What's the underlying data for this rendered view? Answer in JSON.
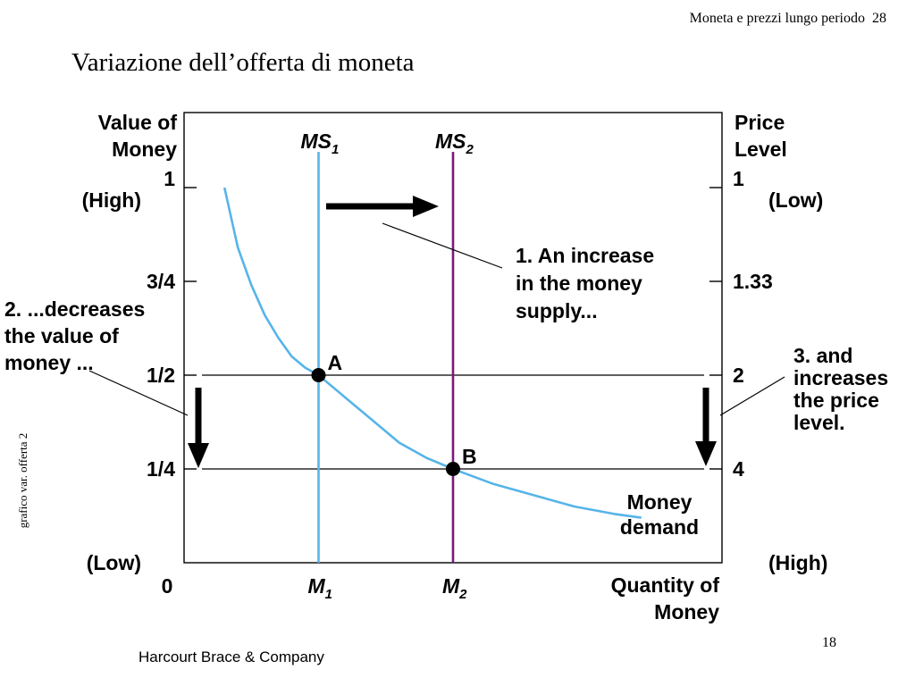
{
  "header": {
    "running_title": "Moneta e prezzi lungo periodo",
    "running_page": "28"
  },
  "slide": {
    "title": "Variazione dell’offerta di moneta",
    "side_label": "grafico var. offerta 2",
    "footer_left": "Harcourt Brace & Company",
    "footer_page": "18"
  },
  "chart_data": {
    "type": "line",
    "title": "Variazione dell’offerta di moneta",
    "left_axis": {
      "label_lines": [
        "Value of",
        "Money"
      ],
      "ticks": [
        {
          "label": "1",
          "value": 1
        },
        {
          "label": "3/4",
          "value": 0.75
        },
        {
          "label": "1/2",
          "value": 0.5
        },
        {
          "label": "1/4",
          "value": 0.25
        }
      ],
      "origin_label": "0",
      "high_label": "(High)",
      "low_label": "(Low)",
      "ylim": [
        0,
        1.2
      ]
    },
    "right_axis": {
      "label_lines": [
        "Price",
        "Level"
      ],
      "ticks": [
        {
          "label": "1",
          "value": 1
        },
        {
          "label": "1.33",
          "value": 1.33
        },
        {
          "label": "2",
          "value": 2
        },
        {
          "label": "4",
          "value": 4
        }
      ],
      "high_label": "(High)",
      "low_label": "(Low)"
    },
    "x_axis": {
      "label_lines": [
        "Quantity of",
        "Money"
      ],
      "ticks": [
        {
          "base": "M",
          "sub": "1",
          "value": 1
        },
        {
          "base": "M",
          "sub": "2",
          "value": 2
        }
      ],
      "xlim": [
        0,
        4
      ]
    },
    "supply_lines": [
      {
        "base": "MS",
        "sub": "1",
        "x": 1,
        "color": "#56b4e9"
      },
      {
        "base": "MS",
        "sub": "2",
        "x": 2,
        "color": "#7a1a7a"
      }
    ],
    "demand_curve": {
      "label_lines": [
        "Money",
        "demand"
      ],
      "color": "#56b4e9",
      "points": [
        [
          0.3,
          1.0
        ],
        [
          0.35,
          0.92
        ],
        [
          0.4,
          0.84
        ],
        [
          0.5,
          0.74
        ],
        [
          0.6,
          0.66
        ],
        [
          0.7,
          0.6
        ],
        [
          0.8,
          0.55
        ],
        [
          0.9,
          0.52
        ],
        [
          1.0,
          0.5
        ],
        [
          1.2,
          0.44
        ],
        [
          1.4,
          0.38
        ],
        [
          1.6,
          0.32
        ],
        [
          1.8,
          0.28
        ],
        [
          2.0,
          0.25
        ],
        [
          2.3,
          0.21
        ],
        [
          2.6,
          0.18
        ],
        [
          2.9,
          0.15
        ],
        [
          3.2,
          0.13
        ],
        [
          3.4,
          0.12
        ]
      ]
    },
    "equilibrium_points": [
      {
        "label": "A",
        "x": 1,
        "y": 0.5
      },
      {
        "label": "B",
        "x": 2,
        "y": 0.25
      }
    ],
    "reference_lines_y": [
      0.5,
      0.25
    ],
    "annotations": [
      {
        "id": "increase_supply",
        "lines": [
          "1. An increase",
          "in the money",
          "supply..."
        ]
      },
      {
        "id": "decreases_value",
        "lines": [
          "2. ...decreases",
          "the value of",
          "money ..."
        ]
      },
      {
        "id": "increases_price",
        "lines": [
          "3. and",
          "increases",
          "the price",
          "level."
        ]
      }
    ],
    "colors": {
      "axis": "#000000",
      "arrow": "#000000"
    }
  }
}
